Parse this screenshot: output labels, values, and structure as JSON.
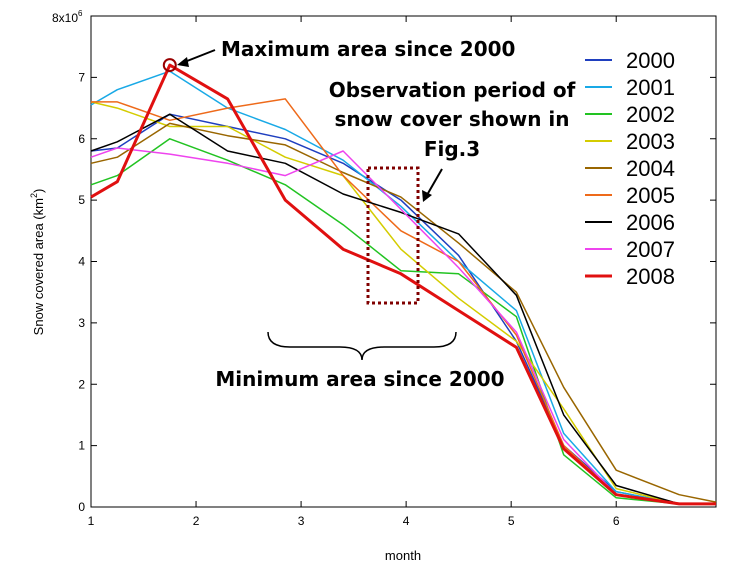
{
  "chart_data": {
    "type": "line",
    "xlabel": "month",
    "ylabel": "Snow covered area (km²)",
    "ylabel_main": "Snow covered area (km",
    "ylabel_sup": "2",
    "ylabel_close": ")",
    "xlim": [
      1,
      6.95
    ],
    "ylim": [
      0,
      8
    ],
    "y_exponent_label": "8x10",
    "y_exponent_sup": "6",
    "xticks": [
      1,
      2,
      3,
      4,
      5,
      6
    ],
    "yticks": [
      0,
      1,
      2,
      3,
      4,
      5,
      6,
      7
    ],
    "grid": false,
    "legend_position": "top-right",
    "series": [
      {
        "name": "2000",
        "color": "#1f3fbf",
        "x": [
          1,
          1.25,
          1.75,
          2.3,
          2.85,
          3.4,
          3.95,
          4.5,
          5.05,
          5.5,
          6.0,
          6.6,
          6.95
        ],
        "y": [
          5.8,
          5.85,
          6.4,
          6.2,
          6.0,
          5.6,
          5.0,
          4.1,
          2.7,
          1.0,
          0.25,
          0.05,
          0.05
        ]
      },
      {
        "name": "2001",
        "color": "#19a9e6",
        "x": [
          1,
          1.25,
          1.75,
          2.3,
          2.85,
          3.4,
          3.95,
          4.5,
          5.05,
          5.5,
          6.0,
          6.6,
          6.95
        ],
        "y": [
          6.55,
          6.8,
          7.1,
          6.5,
          6.15,
          5.65,
          4.9,
          4.0,
          3.2,
          1.2,
          0.25,
          0.05,
          0.05
        ]
      },
      {
        "name": "2002",
        "color": "#22c322",
        "x": [
          1,
          1.25,
          1.75,
          2.3,
          2.85,
          3.4,
          3.95,
          4.5,
          5.05,
          5.5,
          6.0,
          6.6,
          6.95
        ],
        "y": [
          5.25,
          5.4,
          6.0,
          5.65,
          5.25,
          4.6,
          3.85,
          3.8,
          3.1,
          0.85,
          0.15,
          0.05,
          0.05
        ]
      },
      {
        "name": "2003",
        "color": "#d4cc00",
        "x": [
          1,
          1.25,
          1.75,
          2.3,
          2.85,
          3.4,
          3.95,
          4.5,
          5.05,
          5.5,
          6.0,
          6.6,
          6.95
        ],
        "y": [
          6.6,
          6.5,
          6.2,
          6.2,
          5.7,
          5.4,
          4.2,
          3.4,
          2.7,
          1.6,
          0.3,
          0.05,
          0.05
        ]
      },
      {
        "name": "2004",
        "color": "#996600",
        "x": [
          1,
          1.25,
          1.75,
          2.3,
          2.85,
          3.4,
          3.95,
          4.5,
          5.05,
          5.5,
          6.0,
          6.6,
          6.95
        ],
        "y": [
          5.6,
          5.7,
          6.25,
          6.05,
          5.9,
          5.45,
          5.05,
          4.3,
          3.5,
          1.95,
          0.6,
          0.2,
          0.08
        ]
      },
      {
        "name": "2005",
        "color": "#ee6a1a",
        "x": [
          1,
          1.25,
          1.75,
          2.3,
          2.85,
          3.4,
          3.95,
          4.5,
          5.05,
          5.5,
          6.0,
          6.6,
          6.95
        ],
        "y": [
          6.6,
          6.6,
          6.3,
          6.5,
          6.65,
          5.4,
          4.5,
          4.0,
          2.8,
          1.0,
          0.2,
          0.05,
          0.05
        ]
      },
      {
        "name": "2006",
        "color": "#000000",
        "x": [
          1,
          1.25,
          1.75,
          2.3,
          2.85,
          3.4,
          3.95,
          4.5,
          5.05,
          5.5,
          6.0,
          6.6,
          6.95
        ],
        "y": [
          5.8,
          5.95,
          6.4,
          5.8,
          5.6,
          5.1,
          4.8,
          4.45,
          3.45,
          1.5,
          0.35,
          0.05,
          0.05
        ]
      },
      {
        "name": "2007",
        "color": "#ee44ee",
        "x": [
          1,
          1.25,
          1.75,
          2.3,
          2.85,
          3.4,
          3.95,
          4.5,
          5.05,
          5.5,
          6.0,
          6.6,
          6.95
        ],
        "y": [
          5.7,
          5.85,
          5.75,
          5.6,
          5.4,
          5.8,
          4.85,
          3.9,
          2.85,
          1.1,
          0.2,
          0.05,
          0.05
        ]
      },
      {
        "name": "2008",
        "color": "#e01010",
        "x": [
          1,
          1.25,
          1.75,
          2.3,
          2.85,
          3.4,
          3.95,
          4.5,
          5.05,
          5.5,
          6.0,
          6.6,
          6.95
        ],
        "y": [
          5.05,
          5.3,
          7.2,
          6.65,
          5.0,
          4.2,
          3.8,
          3.2,
          2.6,
          0.95,
          0.2,
          0.05,
          0.05
        ]
      }
    ],
    "annotations": {
      "maximum": "Maximum area since 2000",
      "minimum": "Minimum area since 2000",
      "observation_line1": "Observation period of",
      "observation_line2": "snow cover shown in",
      "observation_line3": "Fig.3"
    },
    "marker_color": "#990000",
    "box_color": "#800000"
  }
}
